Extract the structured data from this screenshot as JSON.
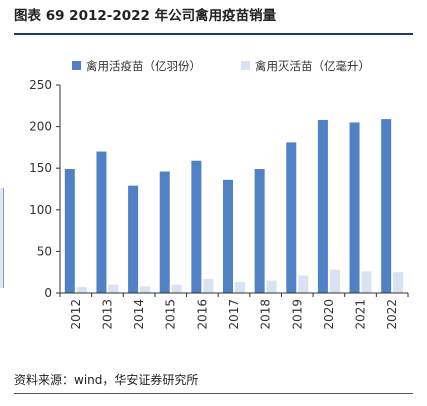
{
  "header": {
    "title": "图表 69 2012-2022 年公司禽用疫苗销量"
  },
  "footer": {
    "source": "资料来源：wind，华安证券研究所"
  },
  "chart_data": {
    "type": "bar",
    "categories": [
      "2012",
      "2013",
      "2014",
      "2015",
      "2016",
      "2017",
      "2018",
      "2019",
      "2020",
      "2021",
      "2022"
    ],
    "series": [
      {
        "name": "禽用活疫苗（亿羽份）",
        "color": "#4f81c4",
        "values": [
          149,
          170,
          129,
          146,
          159,
          136,
          149,
          181,
          208,
          205,
          209
        ]
      },
      {
        "name": "禽用灭活苗（亿毫升）",
        "color": "#d9e2f3",
        "values": [
          7,
          10,
          8,
          10,
          17,
          13,
          15,
          21,
          28,
          26,
          25
        ]
      }
    ],
    "ylim": [
      0,
      250
    ],
    "yticks": [
      0,
      50,
      100,
      150,
      200,
      250
    ],
    "legend": "top",
    "grid": false
  }
}
